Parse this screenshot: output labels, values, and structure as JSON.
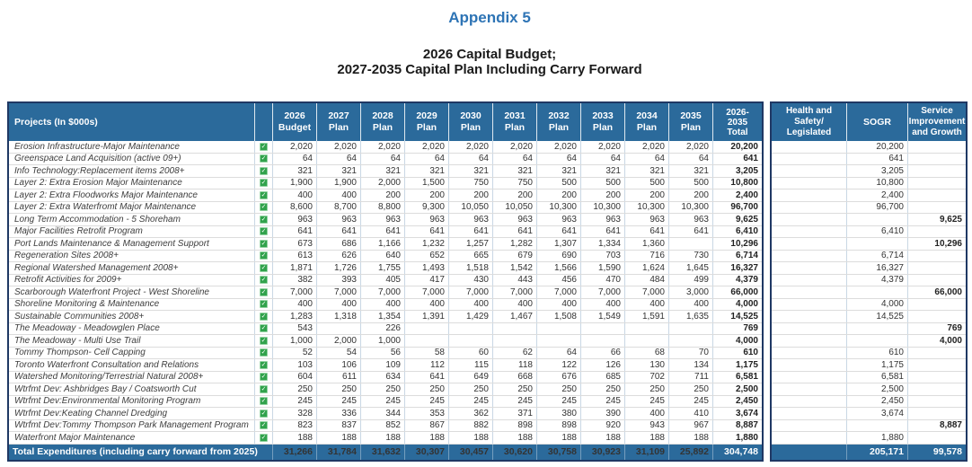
{
  "titles": {
    "appendix": "Appendix 5",
    "subtitle1": "2026 Capital Budget;",
    "subtitle2": "2027-2035 Capital Plan Including Carry Forward"
  },
  "colors": {
    "header_blue": "#2b6a9b",
    "border_navy": "#1f3864",
    "title_blue": "#2e74b5",
    "check_green": "#31a24c"
  },
  "main_table": {
    "projects_header": "Projects (In $000s)",
    "year_headers": [
      [
        "2026",
        "Budget"
      ],
      [
        "2027",
        "Plan"
      ],
      [
        "2028",
        "Plan"
      ],
      [
        "2029",
        "Plan"
      ],
      [
        "2030",
        "Plan"
      ],
      [
        "2031",
        "Plan"
      ],
      [
        "2032",
        "Plan"
      ],
      [
        "2033",
        "Plan"
      ],
      [
        "2034",
        "Plan"
      ],
      [
        "2035",
        "Plan"
      ]
    ],
    "total_header": [
      "2026-",
      "2035",
      "Total"
    ],
    "checkbox_glyph": "✓",
    "rows": [
      {
        "name": "Erosion Infrastructure-Major Maintenance",
        "checked": true,
        "values": [
          "2,020",
          "2,020",
          "2,020",
          "2,020",
          "2,020",
          "2,020",
          "2,020",
          "2,020",
          "2,020",
          "2,020"
        ],
        "total": "20,200"
      },
      {
        "name": "Greenspace Land Acquisition (active 09+)",
        "checked": true,
        "values": [
          "64",
          "64",
          "64",
          "64",
          "64",
          "64",
          "64",
          "64",
          "64",
          "64"
        ],
        "total": "641"
      },
      {
        "name": "Info Technology:Replacement items 2008+",
        "checked": true,
        "values": [
          "321",
          "321",
          "321",
          "321",
          "321",
          "321",
          "321",
          "321",
          "321",
          "321"
        ],
        "total": "3,205"
      },
      {
        "name": "Layer 2: Extra Erosion Major Maintenance",
        "checked": true,
        "values": [
          "1,900",
          "1,900",
          "2,000",
          "1,500",
          "750",
          "750",
          "500",
          "500",
          "500",
          "500"
        ],
        "total": "10,800"
      },
      {
        "name": "Layer 2: Extra Floodworks Major Maintenance",
        "checked": true,
        "values": [
          "400",
          "400",
          "200",
          "200",
          "200",
          "200",
          "200",
          "200",
          "200",
          "200"
        ],
        "total": "2,400"
      },
      {
        "name": "Layer 2: Extra Waterfromt Major Maintenance",
        "checked": true,
        "values": [
          "8,600",
          "8,700",
          "8,800",
          "9,300",
          "10,050",
          "10,050",
          "10,300",
          "10,300",
          "10,300",
          "10,300"
        ],
        "total": "96,700"
      },
      {
        "name": "Long Term Accommodation - 5 Shoreham",
        "checked": true,
        "values": [
          "963",
          "963",
          "963",
          "963",
          "963",
          "963",
          "963",
          "963",
          "963",
          "963"
        ],
        "total": "9,625"
      },
      {
        "name": "Major Facilities Retrofit Program",
        "checked": true,
        "values": [
          "641",
          "641",
          "641",
          "641",
          "641",
          "641",
          "641",
          "641",
          "641",
          "641"
        ],
        "total": "6,410"
      },
      {
        "name": "Port Lands Maintenance & Management Support",
        "checked": true,
        "values": [
          "673",
          "686",
          "1,166",
          "1,232",
          "1,257",
          "1,282",
          "1,307",
          "1,334",
          "1,360",
          ""
        ],
        "total": "10,296"
      },
      {
        "name": "Regeneration Sites 2008+",
        "checked": true,
        "values": [
          "613",
          "626",
          "640",
          "652",
          "665",
          "679",
          "690",
          "703",
          "716",
          "730"
        ],
        "total": "6,714"
      },
      {
        "name": "Regional Watershed Management 2008+",
        "checked": true,
        "values": [
          "1,871",
          "1,726",
          "1,755",
          "1,493",
          "1,518",
          "1,542",
          "1,566",
          "1,590",
          "1,624",
          "1,645"
        ],
        "total": "16,327"
      },
      {
        "name": "Retrofit Activities for 2009+",
        "checked": true,
        "values": [
          "382",
          "393",
          "405",
          "417",
          "430",
          "443",
          "456",
          "470",
          "484",
          "499"
        ],
        "total": "4,379"
      },
      {
        "name": "Scarborough Waterfront Project - West Shoreline",
        "checked": true,
        "values": [
          "7,000",
          "7,000",
          "7,000",
          "7,000",
          "7,000",
          "7,000",
          "7,000",
          "7,000",
          "7,000",
          "3,000"
        ],
        "total": "66,000"
      },
      {
        "name": "Shoreline Monitoring & Maintenance",
        "checked": true,
        "values": [
          "400",
          "400",
          "400",
          "400",
          "400",
          "400",
          "400",
          "400",
          "400",
          "400"
        ],
        "total": "4,000"
      },
      {
        "name": "Sustainable Communities 2008+",
        "checked": true,
        "values": [
          "1,283",
          "1,318",
          "1,354",
          "1,391",
          "1,429",
          "1,467",
          "1,508",
          "1,549",
          "1,591",
          "1,635"
        ],
        "total": "14,525"
      },
      {
        "name": "The Meadoway - Meadowglen Place",
        "checked": true,
        "values": [
          "543",
          "",
          "226",
          "",
          "",
          "",
          "",
          "",
          "",
          ""
        ],
        "total": "769"
      },
      {
        "name": "The Meadoway - Multi Use Trail",
        "checked": true,
        "values": [
          "1,000",
          "2,000",
          "1,000",
          "",
          "",
          "",
          "",
          "",
          "",
          ""
        ],
        "total": "4,000"
      },
      {
        "name": "Tommy Thompson- Cell Capping",
        "checked": true,
        "values": [
          "52",
          "54",
          "56",
          "58",
          "60",
          "62",
          "64",
          "66",
          "68",
          "70"
        ],
        "total": "610"
      },
      {
        "name": "Toronto Waterfront Consultation and Relations",
        "checked": true,
        "values": [
          "103",
          "106",
          "109",
          "112",
          "115",
          "118",
          "122",
          "126",
          "130",
          "134"
        ],
        "total": "1,175"
      },
      {
        "name": "Watershed Monitoring/Terrestrial Natural 2008+",
        "checked": true,
        "values": [
          "604",
          "611",
          "634",
          "641",
          "649",
          "668",
          "676",
          "685",
          "702",
          "711"
        ],
        "total": "6,581"
      },
      {
        "name": "Wtrfmt Dev: Ashbridges Bay / Coatsworth Cut",
        "checked": true,
        "values": [
          "250",
          "250",
          "250",
          "250",
          "250",
          "250",
          "250",
          "250",
          "250",
          "250"
        ],
        "total": "2,500"
      },
      {
        "name": "Wtrfmt Dev:Environmental Monitoring Program",
        "checked": true,
        "values": [
          "245",
          "245",
          "245",
          "245",
          "245",
          "245",
          "245",
          "245",
          "245",
          "245"
        ],
        "total": "2,450"
      },
      {
        "name": "Wtrfmt Dev:Keating Channel Dredging",
        "checked": true,
        "values": [
          "328",
          "336",
          "344",
          "353",
          "362",
          "371",
          "380",
          "390",
          "400",
          "410"
        ],
        "total": "3,674"
      },
      {
        "name": "Wtrfmt Dev:Tommy Thompson Park Management Program",
        "checked": true,
        "values": [
          "823",
          "837",
          "852",
          "867",
          "882",
          "898",
          "898",
          "920",
          "943",
          "967"
        ],
        "total": "8,887"
      },
      {
        "name": "Waterfront Major Maintenance",
        "checked": true,
        "values": [
          "188",
          "188",
          "188",
          "188",
          "188",
          "188",
          "188",
          "188",
          "188",
          "188"
        ],
        "total": "1,880"
      }
    ],
    "total_row": {
      "label": "Total Expenditures (including carry forward from 2025)",
      "values": [
        "31,266",
        "31,784",
        "31,632",
        "30,307",
        "30,457",
        "30,620",
        "30,758",
        "30,923",
        "31,109",
        "25,892"
      ],
      "total": "304,748"
    }
  },
  "category_table": {
    "headers": {
      "health_safety": [
        "Health and",
        "Safety/",
        "Legislated"
      ],
      "sogr": [
        "SOGR"
      ],
      "service": [
        "Service",
        "Improvement",
        "and Growth"
      ]
    },
    "rows": [
      {
        "hs": "",
        "sogr": "20,200",
        "service": ""
      },
      {
        "hs": "",
        "sogr": "641",
        "service": ""
      },
      {
        "hs": "",
        "sogr": "3,205",
        "service": ""
      },
      {
        "hs": "",
        "sogr": "10,800",
        "service": ""
      },
      {
        "hs": "",
        "sogr": "2,400",
        "service": ""
      },
      {
        "hs": "",
        "sogr": "96,700",
        "service": ""
      },
      {
        "hs": "",
        "sogr": "",
        "service": "9,625"
      },
      {
        "hs": "",
        "sogr": "6,410",
        "service": ""
      },
      {
        "hs": "",
        "sogr": "",
        "service": "10,296"
      },
      {
        "hs": "",
        "sogr": "6,714",
        "service": ""
      },
      {
        "hs": "",
        "sogr": "16,327",
        "service": ""
      },
      {
        "hs": "",
        "sogr": "4,379",
        "service": ""
      },
      {
        "hs": "",
        "sogr": "",
        "service": "66,000"
      },
      {
        "hs": "",
        "sogr": "4,000",
        "service": ""
      },
      {
        "hs": "",
        "sogr": "14,525",
        "service": ""
      },
      {
        "hs": "",
        "sogr": "",
        "service": "769"
      },
      {
        "hs": "",
        "sogr": "",
        "service": "4,000"
      },
      {
        "hs": "",
        "sogr": "610",
        "service": ""
      },
      {
        "hs": "",
        "sogr": "1,175",
        "service": ""
      },
      {
        "hs": "",
        "sogr": "6,581",
        "service": ""
      },
      {
        "hs": "",
        "sogr": "2,500",
        "service": ""
      },
      {
        "hs": "",
        "sogr": "2,450",
        "service": ""
      },
      {
        "hs": "",
        "sogr": "3,674",
        "service": ""
      },
      {
        "hs": "",
        "sogr": "",
        "service": "8,887"
      },
      {
        "hs": "",
        "sogr": "1,880",
        "service": ""
      }
    ],
    "total_row": {
      "hs": "",
      "sogr": "205,171",
      "service": "99,578"
    }
  }
}
